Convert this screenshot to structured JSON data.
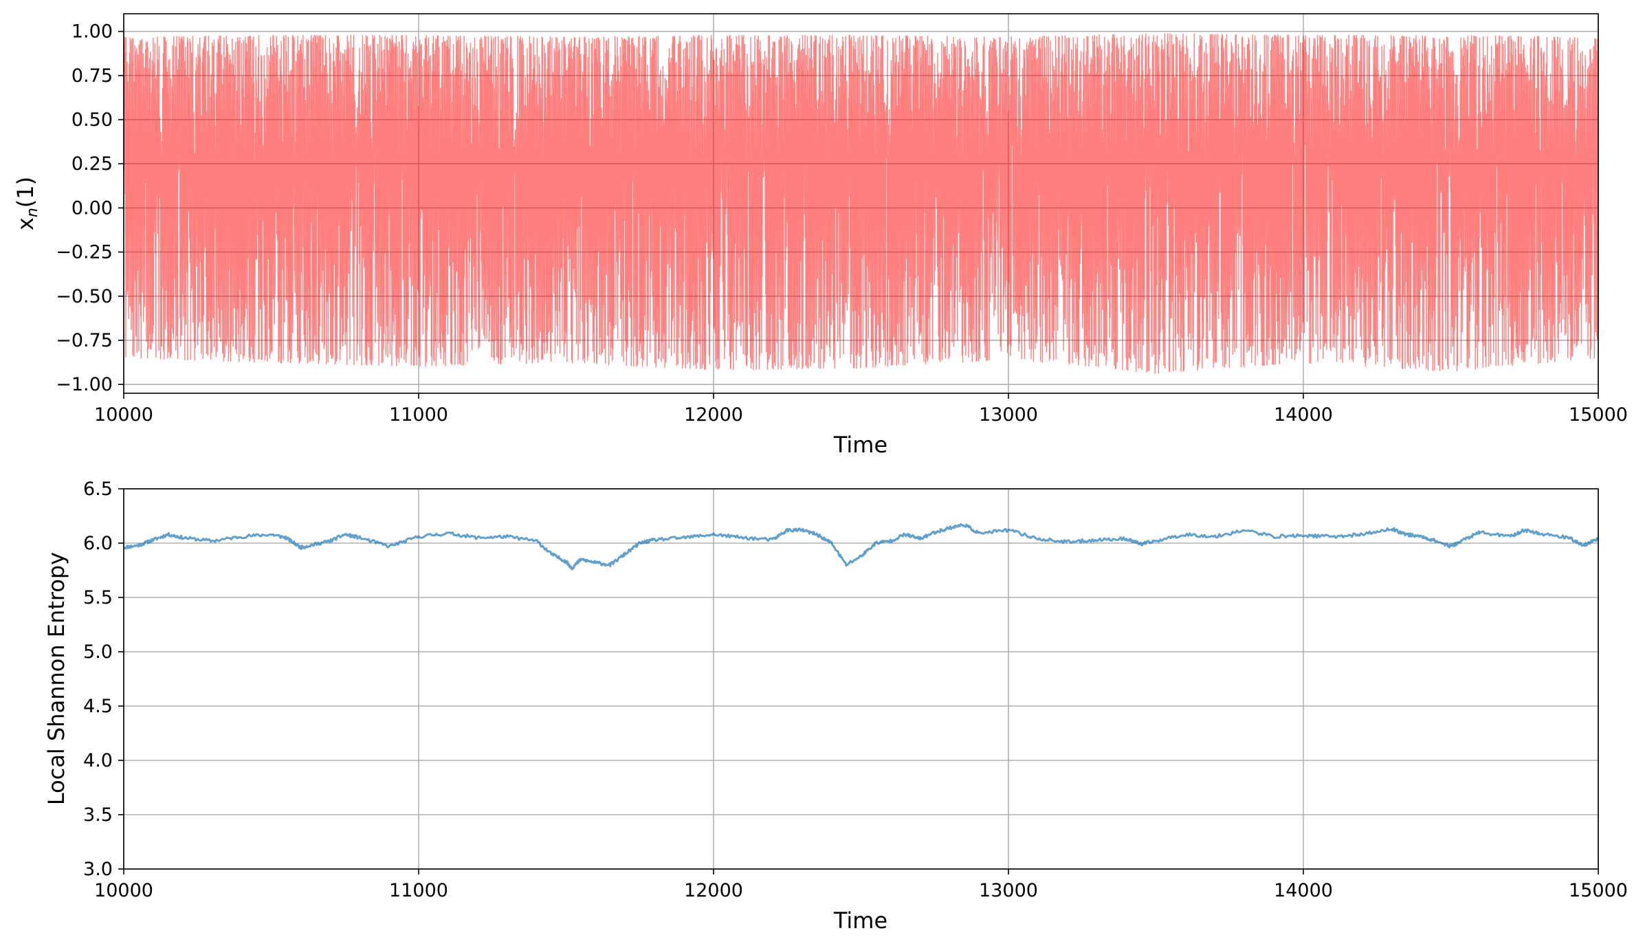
{
  "chart_data": [
    {
      "type": "line",
      "xlabel": "Time",
      "ylabel_main": "x",
      "ylabel_sub": "n",
      "ylabel_tail": "(1)",
      "xlim": [
        10000,
        15000
      ],
      "ylim": [
        -1.05,
        1.1
      ],
      "xticks": [
        10000,
        11000,
        12000,
        13000,
        14000,
        15000
      ],
      "xtick_labels": [
        "10000",
        "11000",
        "12000",
        "13000",
        "14000",
        "15000"
      ],
      "yticks": [
        -1.0,
        -0.75,
        -0.5,
        -0.25,
        0.0,
        0.25,
        0.5,
        0.75,
        1.0
      ],
      "ytick_labels": [
        "−1.00",
        "−0.75",
        "−0.50",
        "−0.25",
        "0.00",
        "0.25",
        "0.50",
        "0.75",
        "1.00"
      ],
      "grid": true,
      "series": [
        {
          "color": "#ff0000",
          "alpha": 0.5,
          "envelope": {
            "x": [
              10000,
              10500,
              11000,
              11500,
              12000,
              12500,
              13000,
              13500,
              14000,
              14500,
              15000
            ],
            "max": [
              0.97,
              0.98,
              0.98,
              0.97,
              0.98,
              0.98,
              0.97,
              0.99,
              0.98,
              0.98,
              0.97
            ],
            "min": [
              -0.85,
              -0.88,
              -0.9,
              -0.88,
              -0.92,
              -0.91,
              -0.86,
              -0.94,
              -0.88,
              -0.93,
              -0.85
            ]
          }
        }
      ]
    },
    {
      "type": "line",
      "xlabel": "Time",
      "ylabel": "Local Shannon Entropy",
      "xlim": [
        10000,
        15000
      ],
      "ylim": [
        3.0,
        6.5
      ],
      "xticks": [
        10000,
        11000,
        12000,
        13000,
        14000,
        15000
      ],
      "xtick_labels": [
        "10000",
        "11000",
        "12000",
        "13000",
        "14000",
        "15000"
      ],
      "yticks": [
        3.0,
        3.5,
        4.0,
        4.5,
        5.0,
        5.5,
        6.0,
        6.5
      ],
      "ytick_labels": [
        "3.0",
        "3.5",
        "4.0",
        "4.5",
        "5.0",
        "5.5",
        "6.0",
        "6.5"
      ],
      "grid": true,
      "series": [
        {
          "color": "#1f77b4",
          "alpha": 0.7,
          "x": [
            10000,
            10050,
            10100,
            10150,
            10200,
            10300,
            10400,
            10500,
            10550,
            10600,
            10650,
            10700,
            10750,
            10800,
            10900,
            11000,
            11100,
            11200,
            11300,
            11400,
            11450,
            11500,
            11520,
            11550,
            11600,
            11650,
            11700,
            11750,
            11800,
            11900,
            12000,
            12100,
            12200,
            12250,
            12300,
            12350,
            12400,
            12450,
            12500,
            12550,
            12600,
            12650,
            12700,
            12750,
            12800,
            12850,
            12900,
            13000,
            13100,
            13200,
            13300,
            13400,
            13450,
            13500,
            13600,
            13700,
            13800,
            13900,
            14000,
            14100,
            14200,
            14300,
            14350,
            14400,
            14450,
            14500,
            14550,
            14600,
            14700,
            14750,
            14800,
            14900,
            14950,
            15000
          ],
          "y": [
            5.96,
            5.98,
            6.03,
            6.08,
            6.05,
            6.02,
            6.06,
            6.08,
            6.05,
            5.96,
            5.99,
            6.02,
            6.08,
            6.05,
            5.97,
            6.06,
            6.09,
            6.05,
            6.06,
            6.02,
            5.9,
            5.83,
            5.77,
            5.85,
            5.82,
            5.8,
            5.9,
            6.0,
            6.03,
            6.05,
            6.08,
            6.05,
            6.03,
            6.12,
            6.12,
            6.08,
            6.0,
            5.8,
            5.88,
            6.0,
            6.02,
            6.08,
            6.04,
            6.1,
            6.14,
            6.17,
            6.09,
            6.12,
            6.04,
            6.01,
            6.03,
            6.04,
            5.99,
            6.02,
            6.08,
            6.06,
            6.12,
            6.06,
            6.07,
            6.06,
            6.08,
            6.13,
            6.08,
            6.06,
            6.02,
            5.97,
            6.04,
            6.1,
            6.06,
            6.12,
            6.09,
            6.05,
            5.98,
            6.04
          ]
        }
      ]
    }
  ]
}
